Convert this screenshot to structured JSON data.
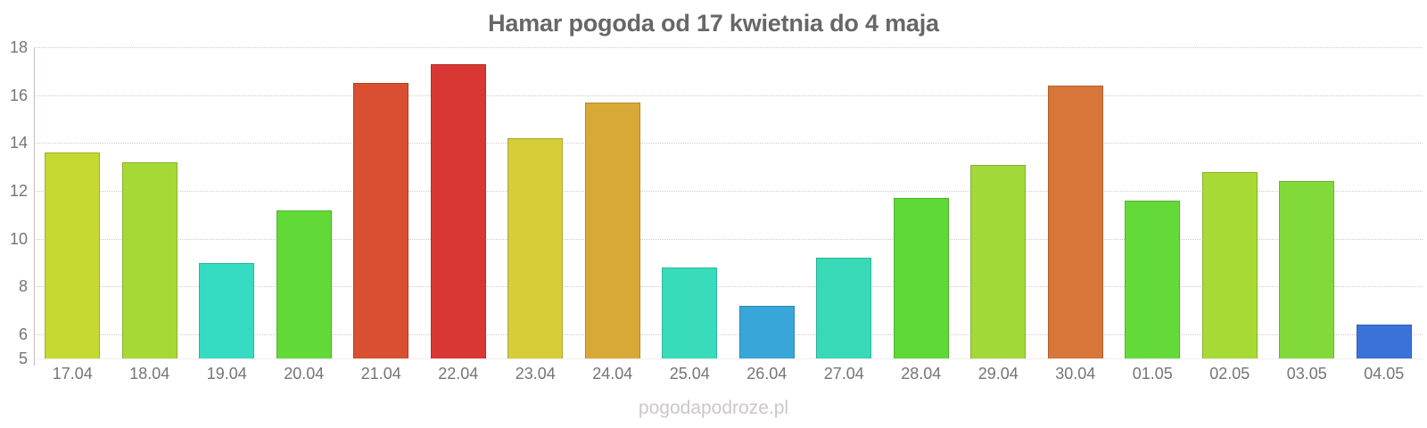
{
  "page": {
    "title": "Hamar pogoda od 17 kwietnia do 4 maja",
    "watermark": "pogodapodroze.pl"
  },
  "chart_data": {
    "type": "bar",
    "title": "Hamar pogoda od 17 kwietnia do 4 maja",
    "xlabel": "",
    "ylabel": "",
    "categories": [
      "17.04",
      "18.04",
      "19.04",
      "20.04",
      "21.04",
      "22.04",
      "23.04",
      "24.04",
      "25.04",
      "26.04",
      "27.04",
      "28.04",
      "29.04",
      "30.04",
      "01.05",
      "02.05",
      "03.05",
      "04.05"
    ],
    "values": [
      13.6,
      13.2,
      9.0,
      11.2,
      16.5,
      17.3,
      14.2,
      15.7,
      8.8,
      7.2,
      9.2,
      11.7,
      13.1,
      16.4,
      11.6,
      12.8,
      12.4,
      6.4
    ],
    "bar_colors": [
      "#c6d832",
      "#a6d935",
      "#35dcc1",
      "#61da37",
      "#d94f31",
      "#d93734",
      "#d5cd39",
      "#d8a937",
      "#39dcba",
      "#38a6d8",
      "#37d9b7",
      "#5ed938",
      "#a0d938",
      "#d87539",
      "#64da39",
      "#a8da35",
      "#82da3a",
      "#3b72da"
    ],
    "yticks": [
      18,
      16,
      14,
      12,
      10,
      8,
      6,
      5
    ],
    "ylim": [
      5,
      18
    ],
    "grid": "horizontal-dotted",
    "legend": "none",
    "colors": {
      "title_color": "#676767",
      "label_color": "#757575",
      "axis_line_color": "#c9b9bd",
      "grid_color": "#d9c7c7",
      "watermark_color": "#cdc7c7",
      "background": "#ffffff"
    }
  }
}
